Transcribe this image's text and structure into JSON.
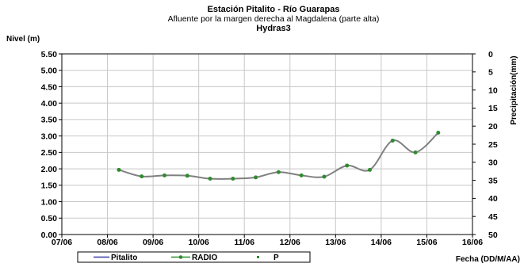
{
  "chart_data": {
    "type": "line",
    "title": "Estación Pitalito  - Río Guarapas",
    "subtitle": "Afluente por la margen derecha al Magdalena (parte alta)",
    "subtitle2": "Hydras3",
    "ylabel": "Nivel (m)",
    "y2label": "Precipitación(mm)",
    "xlabel": "Fecha (DD/M/AA)",
    "x_ticks": [
      "07/06",
      "08/06",
      "09/06",
      "10/06",
      "11/06",
      "12/06",
      "13/06",
      "14/06",
      "15/06",
      "16/06"
    ],
    "ylim": [
      0,
      5.5
    ],
    "y_ticks": [
      "0.00",
      "0.50",
      "1.00",
      "1.50",
      "2.00",
      "2.50",
      "3.00",
      "3.50",
      "4.00",
      "4.50",
      "5.00",
      "5.50"
    ],
    "y2lim": [
      0,
      50
    ],
    "y2_ticks": [
      "0",
      "5",
      "10",
      "15",
      "20",
      "25",
      "30",
      "35",
      "40",
      "45",
      "50"
    ],
    "y2_inverted": true,
    "grid": true,
    "legend_position": "bottom",
    "legend": [
      "Pitalito",
      "RADIO",
      "P"
    ],
    "series": [
      {
        "name": "RADIO",
        "color": "#808080",
        "marker_color": "#2e8b2e",
        "x": [
          1.25,
          1.75,
          2.25,
          2.75,
          3.25,
          3.75,
          4.25,
          4.75,
          5.25,
          5.75,
          6.25,
          6.75,
          7.25,
          7.75,
          8.25
        ],
        "values": [
          1.97,
          1.77,
          1.8,
          1.79,
          1.7,
          1.7,
          1.74,
          1.9,
          1.8,
          1.76,
          2.1,
          1.97,
          2.86,
          2.5,
          3.1
        ]
      }
    ]
  }
}
